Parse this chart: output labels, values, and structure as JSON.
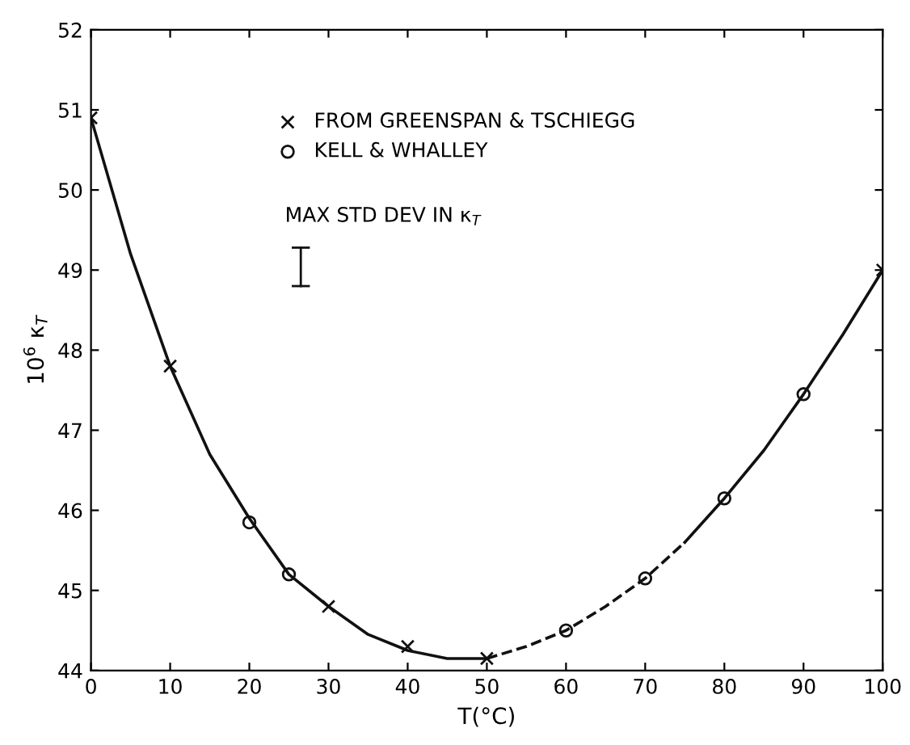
{
  "chart_data": {
    "type": "line",
    "xlabel": "T(°C)",
    "ylabel": "10$^{6}$ κ$_{T}$",
    "xlim": [
      0,
      100
    ],
    "ylim": [
      44,
      52
    ],
    "xticks": [
      0,
      10,
      20,
      30,
      40,
      50,
      60,
      70,
      80,
      90,
      100
    ],
    "yticks": [
      44,
      45,
      46,
      47,
      48,
      49,
      50,
      51,
      52
    ],
    "grid": false,
    "legend": "top left",
    "annotations": [
      "MAX STD DEV IN κ$_{T}$"
    ],
    "series": [
      {
        "line_style": "solid",
        "marker": "none",
        "color": "#111111",
        "x": [
          0,
          5,
          10,
          15,
          20,
          25,
          30,
          35,
          40,
          45,
          50
        ],
        "values": [
          50.9,
          49.2,
          47.8,
          46.7,
          45.9,
          45.2,
          44.8,
          44.45,
          44.25,
          44.15,
          44.15
        ]
      },
      {
        "line_style": "dashed",
        "marker": "none",
        "color": "#111111",
        "x": [
          50,
          55,
          60,
          65,
          70,
          75
        ],
        "values": [
          44.15,
          44.3,
          44.5,
          44.8,
          45.15,
          45.6
        ]
      },
      {
        "line_style": "solid",
        "marker": "none",
        "color": "#111111",
        "x": [
          75,
          80,
          85,
          90,
          95,
          100
        ],
        "values": [
          45.6,
          46.15,
          46.75,
          47.45,
          48.2,
          49.0
        ]
      },
      {
        "type": "scatter",
        "name": "FROM GREENSPAN & TSCHIEGG",
        "marker": "cross",
        "color": "#111111",
        "x": [
          0,
          10,
          30,
          40,
          50,
          100
        ],
        "values": [
          50.9,
          47.8,
          44.8,
          44.3,
          44.15,
          49.0
        ]
      },
      {
        "type": "scatter",
        "name": "KELL & WHALLEY",
        "marker": "circle",
        "color": "#111111",
        "x": [
          20,
          25,
          60,
          70,
          80,
          90
        ],
        "values": [
          45.85,
          45.2,
          44.5,
          45.15,
          46.15,
          47.45
        ]
      }
    ]
  }
}
